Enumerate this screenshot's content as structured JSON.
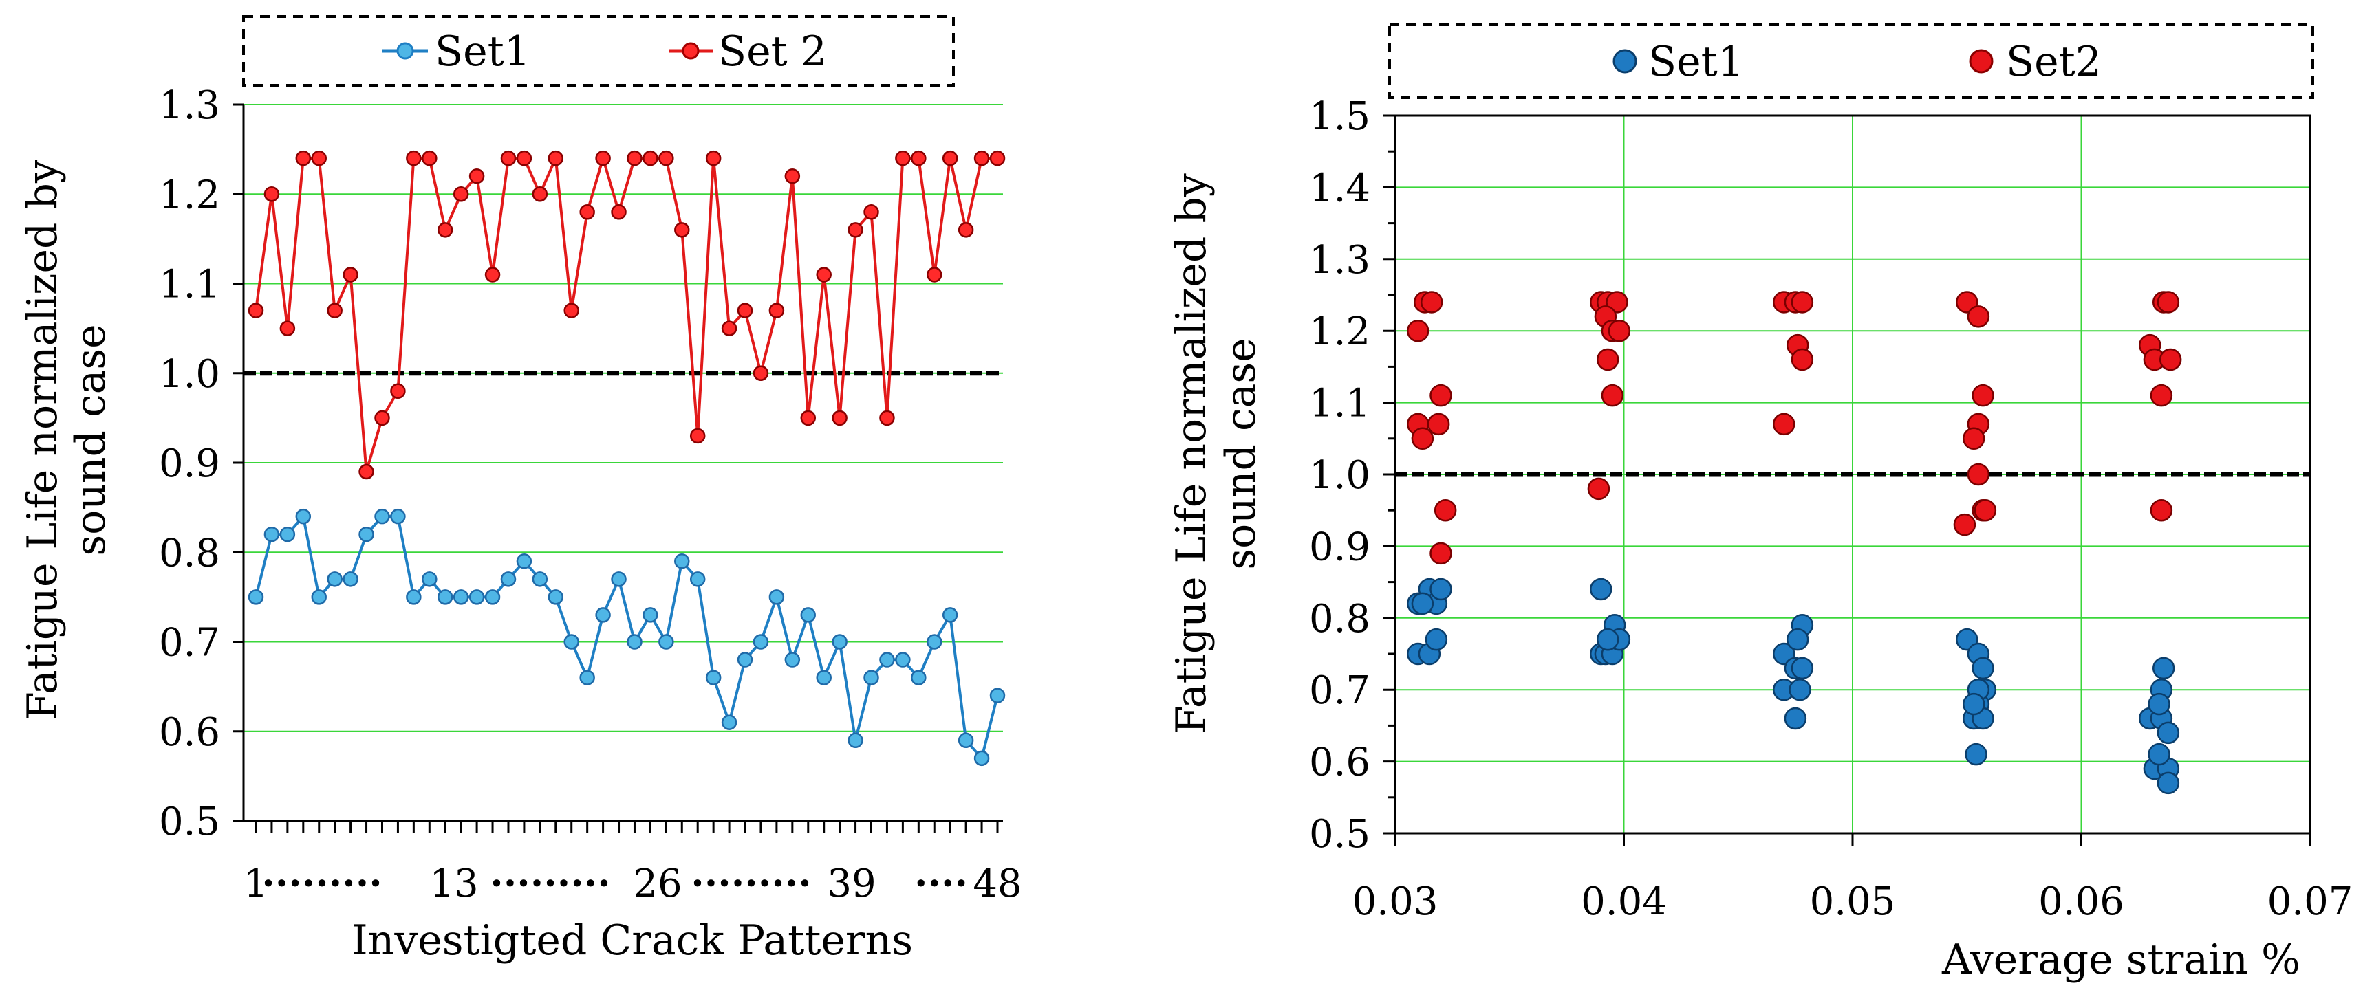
{
  "chart_data": [
    {
      "type": "line",
      "ylabel": "Fatigue Life normalized by sound case",
      "ylabel_lines": [
        "Fatigue Life normalized by",
        "sound case"
      ],
      "xlabel": "Investigted Crack Patterns",
      "x_tick_labels": [
        "1",
        "·········",
        "13",
        "·········",
        "26",
        "·········",
        "39",
        "····",
        "48"
      ],
      "ylim": [
        0.5,
        1.3
      ],
      "y_ticks": [
        "0.5",
        "0.6",
        "0.7",
        "0.8",
        "0.9",
        "1.0",
        "1.1",
        "1.2",
        "1.3"
      ],
      "reference_line": 1.0,
      "legend": [
        "Set1",
        "Set 2"
      ],
      "grid": "horizontal",
      "series": [
        {
          "name": "Set1",
          "color": "#1f7fc4",
          "marker_fill": "#4fb6e6",
          "values": [
            0.75,
            0.82,
            0.82,
            0.84,
            0.75,
            0.77,
            0.77,
            0.82,
            0.84,
            0.84,
            0.75,
            0.77,
            0.75,
            0.75,
            0.75,
            0.75,
            0.77,
            0.79,
            0.77,
            0.75,
            0.7,
            0.66,
            0.73,
            0.77,
            0.7,
            0.73,
            0.7,
            0.79,
            0.77,
            0.66,
            0.61,
            0.68,
            0.7,
            0.75,
            0.68,
            0.73,
            0.66,
            0.7,
            0.59,
            0.66,
            0.68,
            0.68,
            0.66,
            0.7,
            0.73,
            0.59,
            0.57,
            0.64
          ]
        },
        {
          "name": "Set 2",
          "color": "#e21a1a",
          "marker_fill": "#ff2a2a",
          "values": [
            1.07,
            1.2,
            1.05,
            1.24,
            1.24,
            1.07,
            1.11,
            0.89,
            0.95,
            0.98,
            1.24,
            1.24,
            1.16,
            1.2,
            1.22,
            1.11,
            1.24,
            1.24,
            1.2,
            1.24,
            1.07,
            1.18,
            1.24,
            1.18,
            1.24,
            1.24,
            1.24,
            1.16,
            0.93,
            1.24,
            1.05,
            1.07,
            1.0,
            1.07,
            1.22,
            0.95,
            1.11,
            0.95,
            1.16,
            1.18,
            0.95,
            1.24,
            1.24,
            1.11,
            1.24,
            1.16,
            1.24,
            1.24
          ]
        }
      ]
    },
    {
      "type": "scatter",
      "ylabel": "Fatigue Life normalized by sound case",
      "ylabel_lines": [
        "Fatigue Life normalized by",
        "sound case"
      ],
      "xlabel": "Average strain %",
      "xlim": [
        0.03,
        0.07
      ],
      "ylim": [
        0.5,
        1.5
      ],
      "x_ticks": [
        "0.03",
        "0.04",
        "0.05",
        "0.06",
        "0.07"
      ],
      "y_ticks": [
        "0.5",
        "0.6",
        "0.7",
        "0.8",
        "0.9",
        "1.0",
        "1.1",
        "1.2",
        "1.3",
        "1.4",
        "1.5"
      ],
      "reference_line": 1.0,
      "legend": [
        "Set1",
        "Set2"
      ],
      "grid": "both",
      "series": [
        {
          "name": "Set1",
          "color": "#1f7ac2",
          "points": [
            [
              0.031,
              0.75
            ],
            [
              0.0315,
              0.75
            ],
            [
              0.031,
              0.82
            ],
            [
              0.0315,
              0.84
            ],
            [
              0.0318,
              0.82
            ],
            [
              0.032,
              0.84
            ],
            [
              0.0318,
              0.77
            ],
            [
              0.0312,
              0.82
            ],
            [
              0.039,
              0.84
            ],
            [
              0.039,
              0.75
            ],
            [
              0.0392,
              0.75
            ],
            [
              0.0395,
              0.75
            ],
            [
              0.0393,
              0.77
            ],
            [
              0.0396,
              0.79
            ],
            [
              0.0398,
              0.77
            ],
            [
              0.0393,
              0.77
            ],
            [
              0.047,
              0.75
            ],
            [
              0.047,
              0.7
            ],
            [
              0.0475,
              0.73
            ],
            [
              0.0478,
              0.79
            ],
            [
              0.0476,
              0.77
            ],
            [
              0.0478,
              0.73
            ],
            [
              0.0477,
              0.7
            ],
            [
              0.0475,
              0.66
            ],
            [
              0.055,
              0.77
            ],
            [
              0.0555,
              0.75
            ],
            [
              0.0557,
              0.73
            ],
            [
              0.0558,
              0.7
            ],
            [
              0.0555,
              0.68
            ],
            [
              0.0553,
              0.66
            ],
            [
              0.0557,
              0.66
            ],
            [
              0.0554,
              0.61
            ],
            [
              0.0555,
              0.7
            ],
            [
              0.0553,
              0.68
            ],
            [
              0.063,
              0.66
            ],
            [
              0.0635,
              0.66
            ],
            [
              0.0636,
              0.73
            ],
            [
              0.0635,
              0.7
            ],
            [
              0.0634,
              0.68
            ],
            [
              0.0638,
              0.64
            ],
            [
              0.0632,
              0.59
            ],
            [
              0.0638,
              0.59
            ],
            [
              0.0638,
              0.57
            ],
            [
              0.0634,
              0.61
            ]
          ]
        },
        {
          "name": "Set2",
          "color": "#e8141a",
          "points": [
            [
              0.0313,
              1.24
            ],
            [
              0.0316,
              1.24
            ],
            [
              0.031,
              1.2
            ],
            [
              0.032,
              1.11
            ],
            [
              0.031,
              1.07
            ],
            [
              0.0319,
              1.07
            ],
            [
              0.0312,
              1.05
            ],
            [
              0.0322,
              0.95
            ],
            [
              0.032,
              0.89
            ],
            [
              0.039,
              1.24
            ],
            [
              0.0393,
              1.24
            ],
            [
              0.0397,
              1.24
            ],
            [
              0.0392,
              1.22
            ],
            [
              0.0395,
              1.2
            ],
            [
              0.0398,
              1.2
            ],
            [
              0.0393,
              1.16
            ],
            [
              0.0395,
              1.11
            ],
            [
              0.0389,
              0.98
            ],
            [
              0.047,
              1.24
            ],
            [
              0.0475,
              1.24
            ],
            [
              0.0478,
              1.24
            ],
            [
              0.0476,
              1.18
            ],
            [
              0.0478,
              1.16
            ],
            [
              0.047,
              1.07
            ],
            [
              0.055,
              1.24
            ],
            [
              0.0555,
              1.22
            ],
            [
              0.0557,
              1.11
            ],
            [
              0.0555,
              1.07
            ],
            [
              0.0553,
              1.05
            ],
            [
              0.0555,
              1.0
            ],
            [
              0.0557,
              0.95
            ],
            [
              0.0558,
              0.95
            ],
            [
              0.0549,
              0.93
            ],
            [
              0.063,
              1.18
            ],
            [
              0.0632,
              1.16
            ],
            [
              0.0636,
              1.24
            ],
            [
              0.0638,
              1.24
            ],
            [
              0.0639,
              1.16
            ],
            [
              0.0635,
              1.11
            ],
            [
              0.0635,
              0.95
            ]
          ]
        }
      ]
    }
  ]
}
